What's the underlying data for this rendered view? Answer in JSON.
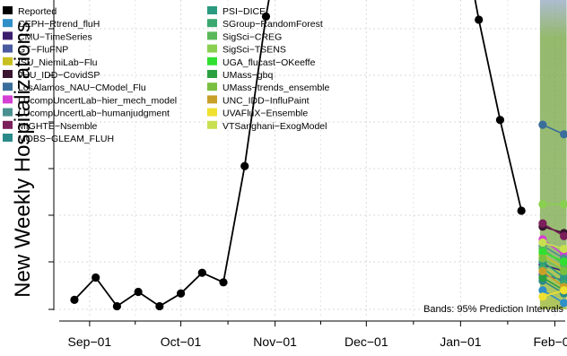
{
  "chart_data": {
    "type": "line",
    "ylabel": "New Weekly Hospitalizations",
    "xlim": [
      "2022-08-22",
      "2023-02-05"
    ],
    "x_ticks": [
      "Sep−01",
      "Oct−01",
      "Nov−01",
      "Dec−01",
      "Jan−01",
      "Feb−01"
    ],
    "annotation": "Bands: 95% Prediction Intervals",
    "grid": true,
    "legend_position": "top-left",
    "reported": {
      "name": "Reported",
      "color": "#000000",
      "points": [
        {
          "x": "2022-08-27",
          "y": 0.03
        },
        {
          "x": "2022-09-03",
          "y": 0.1
        },
        {
          "x": "2022-09-10",
          "y": 0.01
        },
        {
          "x": "2022-09-17",
          "y": 0.055
        },
        {
          "x": "2022-09-24",
          "y": 0.01
        },
        {
          "x": "2022-10-01",
          "y": 0.05
        },
        {
          "x": "2022-10-08",
          "y": 0.115
        },
        {
          "x": "2022-10-15",
          "y": 0.085
        },
        {
          "x": "2022-10-22",
          "y": 0.45
        },
        {
          "x": "2022-10-29",
          "y": 0.92
        },
        {
          "x": "2023-01-07",
          "y": 0.91
        },
        {
          "x": "2023-01-14",
          "y": 0.595
        },
        {
          "x": "2023-01-21",
          "y": 0.31
        }
      ]
    },
    "band": {
      "start": "2023-01-28",
      "end": "2023-02-04",
      "color": "#7aa84a",
      "top_color": "#9fb0c8"
    },
    "series": [
      {
        "name": "CEPH−Rtrend_fluH",
        "color": "#2f8fc8",
        "values": [
          0.06,
          0.02
        ]
      },
      {
        "name": "CMU−TimeSeries",
        "color": "#3b1f6e",
        "values": [
          0.14,
          0.12
        ]
      },
      {
        "name": "GT−FluFNP",
        "color": "#4a5aa0",
        "values": [
          0.11,
          0.09
        ]
      },
      {
        "name": "ISU_NiemiLab−Flu",
        "color": "#c8c020",
        "values": [
          0.17,
          0.13
        ]
      },
      {
        "name": "JHU_IDD−CovidSP",
        "color": "#3a1530",
        "values": [
          0.26,
          0.24
        ]
      },
      {
        "name": "LosAlamos_NAU−CModel_Flu",
        "color": "#3a6e9a",
        "values": [
          0.58,
          0.55
        ]
      },
      {
        "name": "LUcompUncertLab−hier_mech_model",
        "color": "#d43fd4",
        "values": [
          0.22,
          0.17
        ]
      },
      {
        "name": "LUcompUncertLab−humanjudgment",
        "color": "#4a9090",
        "values": [
          0.2,
          0.16
        ]
      },
      {
        "name": "MIGHTE−Nsemble",
        "color": "#7a1f5a",
        "values": [
          0.27,
          0.23
        ]
      },
      {
        "name": "MOBS−GLEAM_FLUH",
        "color": "#2a8a8a",
        "values": [
          0.09,
          0.05
        ]
      },
      {
        "name": "PSI−DICE",
        "color": "#2a9a80",
        "values": [
          0.15,
          0.1
        ]
      },
      {
        "name": "SGroup−RandomForest",
        "color": "#3aa870",
        "values": [
          0.13,
          0.08
        ]
      },
      {
        "name": "SigSci−CREG",
        "color": "#5ab85a",
        "values": [
          0.19,
          0.14
        ]
      },
      {
        "name": "SigSci−TSENS",
        "color": "#8ad050",
        "values": [
          0.33,
          0.33
        ]
      },
      {
        "name": "UGA_flucast−OKeeffe",
        "color": "#30e030",
        "values": [
          0.18,
          0.15
        ]
      },
      {
        "name": "UMass−gbq",
        "color": "#2aa040",
        "values": [
          0.1,
          0.06
        ]
      },
      {
        "name": "UMass−trends_ensemble",
        "color": "#7ac040",
        "values": [
          0.16,
          0.12
        ]
      },
      {
        "name": "UNC_IDD−InfluPaint",
        "color": "#c8a028",
        "values": [
          0.12,
          0.07
        ]
      },
      {
        "name": "UVAFluX−Ensemble",
        "color": "#f0e030",
        "values": [
          0.04,
          0.06
        ]
      },
      {
        "name": "VTSanghani−ExogModel",
        "color": "#c8e050",
        "values": [
          0.21,
          0.19
        ]
      }
    ]
  }
}
